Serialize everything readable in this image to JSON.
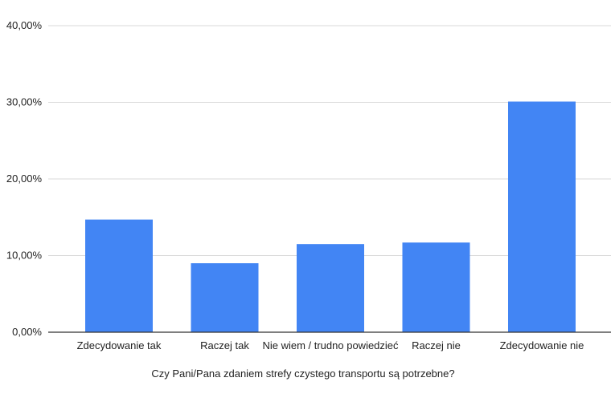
{
  "chart_data": {
    "type": "bar",
    "categories": [
      "Zdecydowanie tak",
      "Raczej tak",
      "Nie wiem / trudno powiedzieć",
      "Raczej nie",
      "Zdecydowanie nie"
    ],
    "values": [
      14.7,
      9.0,
      11.5,
      11.7,
      30.1
    ],
    "title": "",
    "xlabel": "Czy Pani/Pana zdaniem strefy czystego transportu są potrzebne?",
    "ylabel": "",
    "ylim": [
      0,
      40
    ],
    "yticks": [
      0,
      10,
      20,
      30,
      40
    ],
    "ytick_labels": [
      "0,00%",
      "10,00%",
      "20,00%",
      "30,00%",
      "40,00%"
    ],
    "grid": true,
    "legend": "none",
    "bar_color": "#4285F4",
    "grid_color": "#D9D9D9",
    "axis_color": "#333333"
  }
}
